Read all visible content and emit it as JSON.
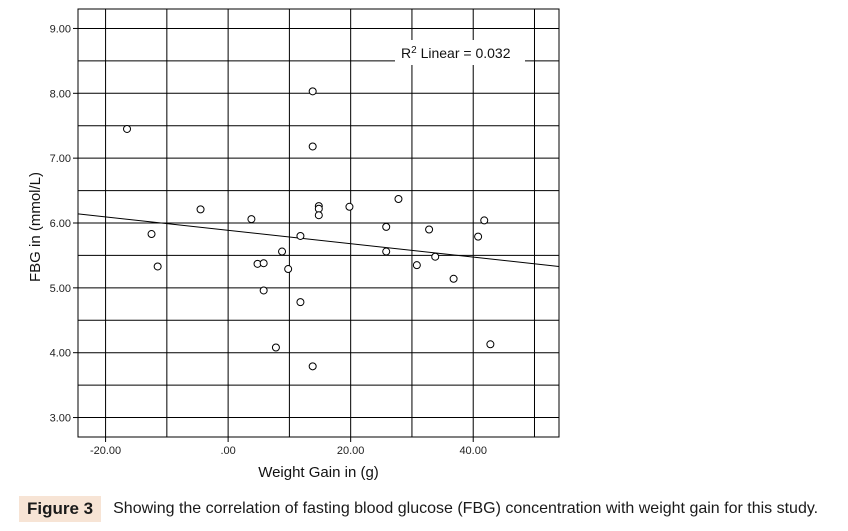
{
  "chart_data": {
    "type": "scatter",
    "title": "",
    "xlabel": "Weight Gain in (g)",
    "ylabel": "FBG in (mmol/L)",
    "xlim": [
      -24.5,
      54
    ],
    "ylim": [
      2.7,
      9.3
    ],
    "x_ticks": [
      -20,
      0,
      20,
      40
    ],
    "x_tick_labels": [
      "-20.00",
      ".00",
      "20.00",
      "40.00"
    ],
    "y_ticks": [
      3,
      4,
      5,
      6,
      7,
      8,
      9
    ],
    "y_tick_labels": [
      "3.00",
      "4.00",
      "5.00",
      "6.00",
      "7.00",
      "8.00",
      "9.00"
    ],
    "grid": true,
    "points": [
      {
        "x": -16.5,
        "y": 7.45
      },
      {
        "x": -12.5,
        "y": 5.83
      },
      {
        "x": -11.5,
        "y": 5.33
      },
      {
        "x": -4.5,
        "y": 6.21
      },
      {
        "x": 3.8,
        "y": 6.06
      },
      {
        "x": 4.8,
        "y": 5.37
      },
      {
        "x": 5.8,
        "y": 5.38
      },
      {
        "x": 5.8,
        "y": 4.96
      },
      {
        "x": 7.8,
        "y": 4.08
      },
      {
        "x": 8.8,
        "y": 5.56
      },
      {
        "x": 9.8,
        "y": 5.29
      },
      {
        "x": 11.8,
        "y": 5.8
      },
      {
        "x": 11.8,
        "y": 4.78
      },
      {
        "x": 13.8,
        "y": 8.03
      },
      {
        "x": 13.8,
        "y": 7.18
      },
      {
        "x": 13.8,
        "y": 3.79
      },
      {
        "x": 14.8,
        "y": 6.26
      },
      {
        "x": 14.8,
        "y": 6.22
      },
      {
        "x": 14.8,
        "y": 6.12
      },
      {
        "x": 19.8,
        "y": 6.25
      },
      {
        "x": 25.8,
        "y": 5.94
      },
      {
        "x": 25.8,
        "y": 5.56
      },
      {
        "x": 27.8,
        "y": 6.37
      },
      {
        "x": 30.8,
        "y": 5.35
      },
      {
        "x": 32.8,
        "y": 5.9
      },
      {
        "x": 33.8,
        "y": 5.48
      },
      {
        "x": 36.8,
        "y": 5.14
      },
      {
        "x": 40.8,
        "y": 5.79
      },
      {
        "x": 41.8,
        "y": 6.04
      },
      {
        "x": 42.8,
        "y": 4.13
      }
    ],
    "fit_line": {
      "x": [
        -24.5,
        54
      ],
      "y": [
        6.14,
        5.33
      ]
    },
    "annotation": {
      "prefix": "R",
      "superscript": "2",
      "text": " Linear = 0.032"
    }
  },
  "caption": {
    "label": "Figure 3",
    "text": "Showing the correlation of fasting blood glucose (FBG) concentration with weight gain for this study."
  }
}
